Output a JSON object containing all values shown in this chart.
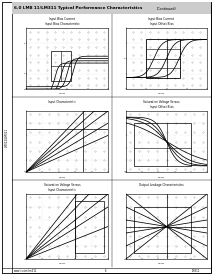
{
  "bg_color": "#ffffff",
  "page_title": "6.0 LM8 11/LM311 Typical Performance Characteristics",
  "page_title_suffix": "(Continued)",
  "side_label": "LM311/LM311",
  "footer_left": "www.ti.com/lm311",
  "footer_page": "6",
  "footer_right": "LM311",
  "plots": [
    {
      "title1": "Input Bias Current",
      "title2": "Input Bias Characteristic",
      "type": "step_curves_with_box",
      "has_dotgrid": true
    },
    {
      "title1": "Input Bias Current",
      "title2": "Input Offset Bias",
      "type": "box_crossing_curves",
      "has_dotgrid": true
    },
    {
      "title1": "Input Characteristic",
      "title2": "",
      "type": "diagonal_with_vertical",
      "has_dotgrid": true
    },
    {
      "title1": "Saturation Voltage Versus",
      "title2": "Input Offset Bias",
      "type": "saturation_box",
      "has_dotgrid": true
    },
    {
      "title1": "Saturation Voltage Versus",
      "title2": "Input Characteristic",
      "type": "saturation_diagonal",
      "has_dotgrid": true
    },
    {
      "title1": "Output Leakage Characteristics",
      "title2": "",
      "type": "leakage_fan",
      "has_dotgrid": true
    }
  ]
}
